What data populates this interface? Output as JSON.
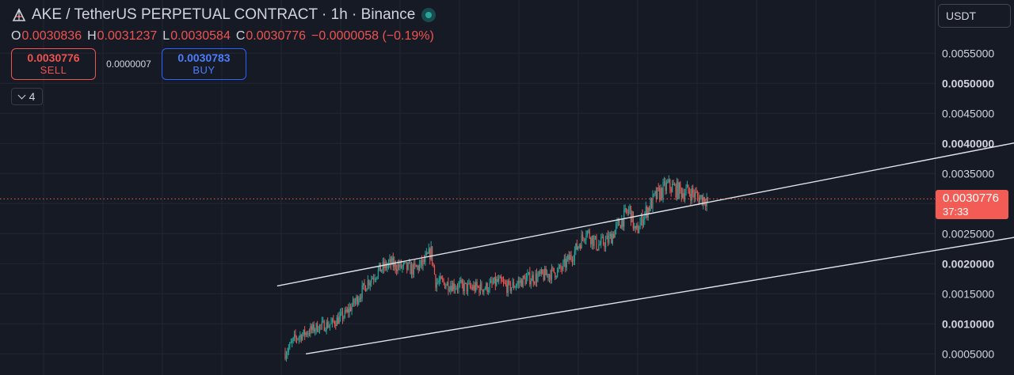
{
  "header": {
    "title": "AKE / TetherUS PERPETUAL CONTRACT · 1h · Binance",
    "ohlc": {
      "o_label": "O",
      "o": "0.0030836",
      "h_label": "H",
      "h": "0.0031237",
      "l_label": "L",
      "l": "0.0030584",
      "c_label": "C",
      "c": "0.0030776",
      "change": "−0.0000058 (−0.19%)"
    }
  },
  "trade": {
    "sell_price": "0.0030776",
    "sell_label": "SELL",
    "spread": "0.0000007",
    "buy_price": "0.0030783",
    "buy_label": "BUY"
  },
  "indicators_toggle": {
    "count": "4"
  },
  "currency_select": {
    "value": "USDT"
  },
  "price_label": {
    "price": "0.0030776",
    "countdown": "37:33"
  },
  "colors": {
    "background": "#161a25",
    "up": "#26a69a",
    "down": "#ef5350",
    "grid": "#232631",
    "buy_border": "#2962ff",
    "price_line": "#f25c54"
  },
  "chart_data": {
    "type": "candlestick",
    "title": "",
    "y_axis": {
      "position": "right",
      "range": [
        0.0003,
        0.0059
      ],
      "ticks": [
        "0.0005000",
        "0.0010000",
        "0.0015000",
        "0.0020000",
        "0.0025000",
        "0.0030000",
        "0.0035000",
        "0.0040000",
        "0.0045000",
        "0.0050000",
        "0.0055000"
      ],
      "bold_ticks": [
        "0.0010000",
        "0.0020000",
        "0.0030000",
        "0.0040000",
        "0.0050000"
      ]
    },
    "grid": true,
    "current_price": 0.0030776,
    "prelisting_flat_value": 4e-05,
    "price_path": [
      [
        0,
        0.0005
      ],
      [
        8,
        0.00075
      ],
      [
        18,
        0.00085
      ],
      [
        28,
        0.00095
      ],
      [
        40,
        0.001
      ],
      [
        52,
        0.00115
      ],
      [
        62,
        0.0014
      ],
      [
        72,
        0.0017
      ],
      [
        82,
        0.0019
      ],
      [
        92,
        0.002
      ],
      [
        100,
        0.00195
      ],
      [
        112,
        0.0019
      ],
      [
        120,
        0.002
      ],
      [
        127,
        0.0022
      ],
      [
        131,
        0.0017
      ],
      [
        145,
        0.00165
      ],
      [
        160,
        0.0016
      ],
      [
        175,
        0.0016
      ],
      [
        185,
        0.0017
      ],
      [
        195,
        0.0016
      ],
      [
        210,
        0.00175
      ],
      [
        225,
        0.0018
      ],
      [
        240,
        0.0019
      ],
      [
        252,
        0.0022
      ],
      [
        262,
        0.00255
      ],
      [
        272,
        0.0023
      ],
      [
        282,
        0.0024
      ],
      [
        292,
        0.0027
      ],
      [
        300,
        0.0029
      ],
      [
        305,
        0.0025
      ],
      [
        312,
        0.0028
      ],
      [
        322,
        0.0031
      ],
      [
        333,
        0.0033
      ],
      [
        345,
        0.0032
      ],
      [
        352,
        0.0032
      ],
      [
        360,
        0.0031
      ],
      [
        368,
        0.0030776
      ]
    ],
    "channel": {
      "upper": [
        [
          -7,
          0.00163
        ],
        [
          727,
          0.00435
        ]
      ],
      "lower": [
        [
          18,
          0.0005
        ],
        [
          728,
          0.00273
        ]
      ]
    }
  }
}
